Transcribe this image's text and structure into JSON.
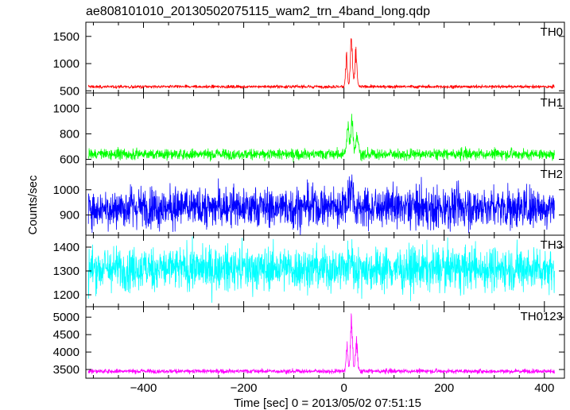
{
  "title": "ae808101010_20130502075115_wam2_trn_4band_long.qdp",
  "ylabel": "Counts/sec",
  "xlabel": "Time [sec] 0 = 2013/05/02 07:51:15",
  "chart_data": {
    "type": "line",
    "title": "ae808101010_20130502075115_wam2_trn_4band_long.qdp",
    "xlabel": "Time [sec] 0 = 2013/05/02 07:51:15",
    "ylabel": "Counts/sec",
    "xlim": [
      -515,
      440
    ],
    "xticks": [
      -400,
      -200,
      0,
      200,
      400
    ],
    "xtick_labels": [
      "−400",
      "−200",
      "0",
      "200",
      "400"
    ],
    "x_range": [
      -510,
      420
    ],
    "grid": false,
    "panels": [
      {
        "name": "TH0",
        "color": "#ff0000",
        "ylim": [
          460,
          1760
        ],
        "yticks": [
          500,
          1000,
          1500
        ],
        "yticklabels": [
          "500",
          "1000",
          "1500"
        ],
        "baseline": 575,
        "noise": 14,
        "bursts": [
          {
            "t": 5,
            "height": 700,
            "width": 2.5
          },
          {
            "t": 15,
            "height": 1050,
            "width": 3
          },
          {
            "t": 24,
            "height": 750,
            "width": 3
          }
        ]
      },
      {
        "name": "TH1",
        "color": "#00ff00",
        "ylim": [
          560,
          1120
        ],
        "yticks": [
          600,
          800,
          1000
        ],
        "yticklabels": [
          "600",
          "800",
          "1000"
        ],
        "baseline": 640,
        "noise": 20,
        "bursts": [
          {
            "t": 8,
            "height": 280,
            "width": 3
          },
          {
            "t": 16,
            "height": 380,
            "width": 3
          },
          {
            "t": 26,
            "height": 180,
            "width": 4
          }
        ]
      },
      {
        "name": "TH2",
        "color": "#0000ff",
        "ylim": [
          820,
          1100
        ],
        "yticks": [
          900,
          1000
        ],
        "yticklabels": [
          "900",
          "1000"
        ],
        "baseline": 930,
        "noise": 40,
        "bursts": [
          {
            "t": 10,
            "height": 80,
            "width": 4
          },
          {
            "t": 17,
            "height": 110,
            "width": 3
          }
        ]
      },
      {
        "name": "TH3",
        "color": "#00ffff",
        "ylim": [
          1150,
          1450
        ],
        "yticks": [
          1200,
          1300,
          1400
        ],
        "yticklabels": [
          "1200",
          "1300",
          "1400"
        ],
        "baseline": 1310,
        "noise": 45,
        "bursts": [
          {
            "t": 14,
            "height": 60,
            "width": 4
          }
        ]
      },
      {
        "name": "TH0123",
        "color": "#ff00ff",
        "ylim": [
          3250,
          5300
        ],
        "yticks": [
          3500,
          4000,
          4500,
          5000
        ],
        "yticklabels": [
          "3500",
          "4000",
          "4500",
          "5000"
        ],
        "baseline": 3450,
        "noise": 30,
        "bursts": [
          {
            "t": 6,
            "height": 900,
            "width": 2.5
          },
          {
            "t": 15,
            "height": 1750,
            "width": 3
          },
          {
            "t": 25,
            "height": 1100,
            "width": 3
          }
        ]
      }
    ]
  }
}
